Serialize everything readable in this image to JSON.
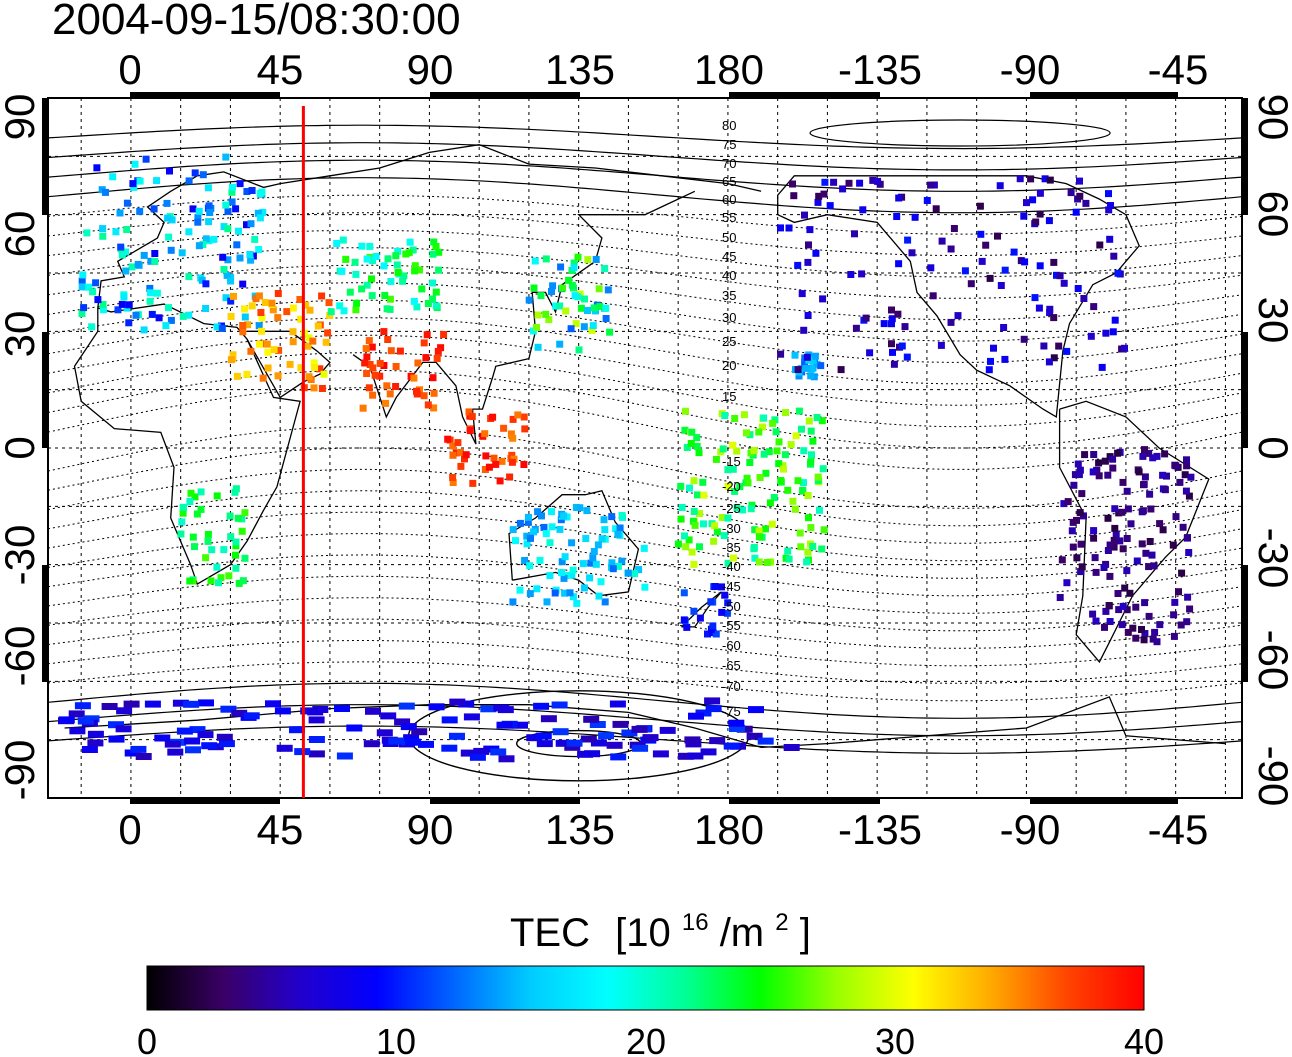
{
  "timestamp": "2004-09-15/08:30:00",
  "top_axis": {
    "ticks": [
      "0",
      "45",
      "90",
      "135",
      "180",
      "-135",
      "-90",
      "-45"
    ]
  },
  "bottom_axis": {
    "ticks": [
      "0",
      "45",
      "90",
      "135",
      "180",
      "-135",
      "-90",
      "-45"
    ]
  },
  "left_axis": {
    "ticks": [
      "90",
      "60",
      "30",
      "0",
      "-30",
      "-60",
      "-90"
    ]
  },
  "right_axis": {
    "ticks": [
      "90",
      "60",
      "30",
      "0",
      "-30",
      "-60",
      "-90"
    ]
  },
  "contour_labels": {
    "north": [
      "80",
      "75",
      "70",
      "65",
      "60",
      "55",
      "50",
      "45",
      "40",
      "35",
      "30",
      "25",
      "20",
      "15"
    ],
    "south": [
      "-15",
      "-20",
      "-25",
      "-30",
      "-35",
      "-40",
      "-45",
      "-50",
      "-55",
      "-60",
      "-65",
      "-70",
      "-75"
    ]
  },
  "colorbar": {
    "title": "TEC",
    "unit_prefix": "[10",
    "unit_exp": "16",
    "unit_mid": "/m",
    "unit_exp2": "2",
    "unit_suffix": "]",
    "ticks": [
      "0",
      "10",
      "20",
      "30",
      "40"
    ],
    "min": 0,
    "max": 40,
    "colors": [
      "#000000",
      "#3a0066",
      "#2200cc",
      "#0000ff",
      "#0066ff",
      "#00ccff",
      "#00ffff",
      "#00ff99",
      "#00ff00",
      "#99ff00",
      "#ffff00",
      "#ffaa00",
      "#ff4400",
      "#ff0000"
    ]
  },
  "map": {
    "lon_min": -25,
    "lon_max": 335,
    "lat_min": -90,
    "lat_max": 90,
    "marker_longitude": 52,
    "marker_color": "#ff0000"
  },
  "tec_regions": [
    {
      "name": "europe",
      "lon": [
        -15,
        40
      ],
      "lat": [
        30,
        75
      ],
      "tec": [
        8,
        22
      ]
    },
    {
      "name": "middle-east",
      "lon": [
        30,
        60
      ],
      "lat": [
        15,
        40
      ],
      "tec": [
        30,
        38
      ]
    },
    {
      "name": "central-asia",
      "lon": [
        60,
        95
      ],
      "lat": [
        35,
        55
      ],
      "tec": [
        18,
        26
      ]
    },
    {
      "name": "india",
      "lon": [
        70,
        95
      ],
      "lat": [
        10,
        30
      ],
      "tec": [
        35,
        40
      ]
    },
    {
      "name": "east-asia",
      "lon": [
        120,
        145
      ],
      "lat": [
        25,
        50
      ],
      "tec": [
        12,
        30
      ]
    },
    {
      "name": "se-asia",
      "lon": [
        95,
        120
      ],
      "lat": [
        -10,
        10
      ],
      "tec": [
        35,
        40
      ]
    },
    {
      "name": "africa-s",
      "lon": [
        15,
        35
      ],
      "lat": [
        -35,
        -10
      ],
      "tec": [
        20,
        26
      ]
    },
    {
      "name": "australia",
      "lon": [
        115,
        155
      ],
      "lat": [
        -40,
        -15
      ],
      "tec": [
        12,
        20
      ]
    },
    {
      "name": "new-zealand",
      "lon": [
        165,
        180
      ],
      "lat": [
        -48,
        -35
      ],
      "tec": [
        8,
        12
      ]
    },
    {
      "name": "pacific-islands",
      "lon": [
        165,
        210
      ],
      "lat": [
        -30,
        10
      ],
      "tec": [
        20,
        30
      ]
    },
    {
      "name": "hawaii",
      "lon": [
        200,
        208
      ],
      "lat": [
        18,
        24
      ],
      "tec": [
        12,
        16
      ]
    },
    {
      "name": "north-america",
      "lon": [
        195,
        300
      ],
      "lat": [
        20,
        70
      ],
      "tec": [
        2,
        10
      ]
    },
    {
      "name": "south-america",
      "lon": [
        280,
        320
      ],
      "lat": [
        -50,
        0
      ],
      "tec": [
        2,
        6
      ]
    },
    {
      "name": "antarctica",
      "lon": [
        -20,
        200
      ],
      "lat": [
        -80,
        -65
      ],
      "tec": [
        5,
        11
      ]
    }
  ]
}
